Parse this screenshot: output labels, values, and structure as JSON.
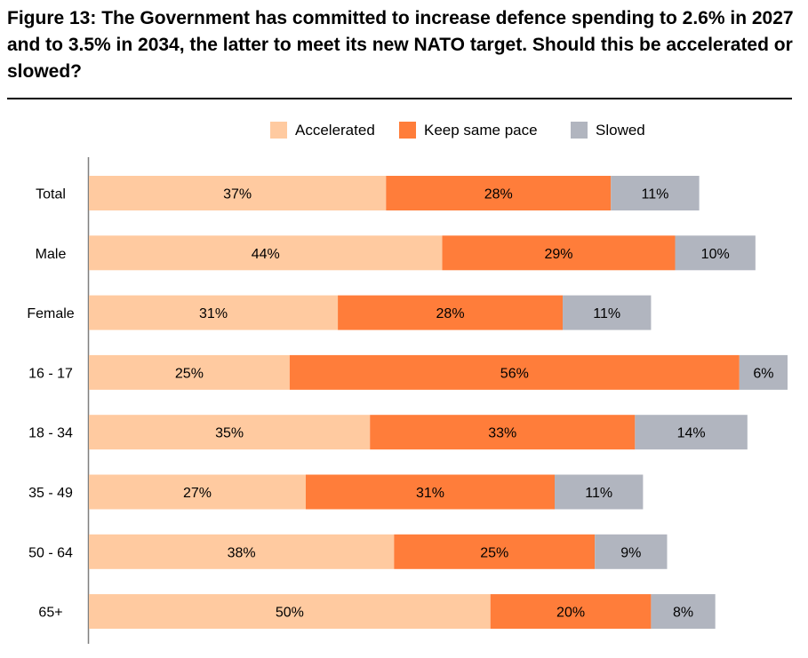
{
  "chart_data": {
    "type": "bar",
    "orientation": "horizontal",
    "stacked": true,
    "title": "Figure 13: The Government has committed to increase defence spending to 2.6% in 2027 and to 3.5% in 2034, the latter to meet its new NATO target. Should this be accelerated or slowed?",
    "categories": [
      "Total",
      "Male",
      "Female",
      "16 - 17",
      "18 - 34",
      "35 - 49",
      "50 - 64",
      "65+"
    ],
    "series": [
      {
        "name": "Accelerated",
        "color": "#FFCAA0",
        "values": [
          37,
          44,
          31,
          25,
          35,
          27,
          38,
          50
        ]
      },
      {
        "name": "Keep same pace",
        "color": "#FF7D3A",
        "values": [
          28,
          29,
          28,
          56,
          33,
          31,
          25,
          20
        ]
      },
      {
        "name": "Slowed",
        "color": "#B1B5BF",
        "values": [
          11,
          10,
          11,
          6,
          14,
          11,
          9,
          8
        ]
      }
    ],
    "value_suffix": "%",
    "xlim": [
      0,
      87
    ],
    "legend_position": "top-right"
  }
}
